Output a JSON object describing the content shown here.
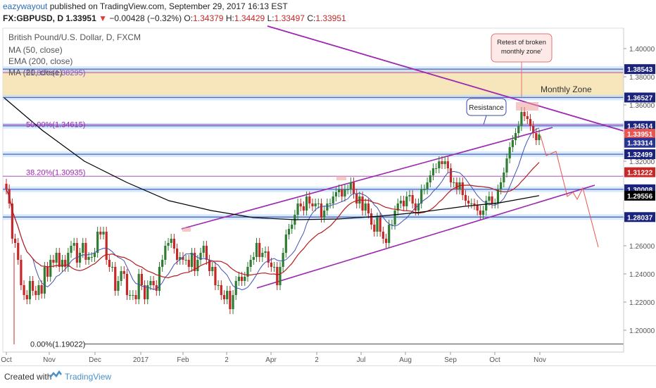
{
  "header": {
    "author": "eazywayout",
    "published_text": "published on TradingView.com, September 29, 2017 16:13 EST",
    "symbol": "FX:GBPUSD, D",
    "last": "1.33951",
    "change": "−0.00428 (−0.32%)",
    "o_label": "O:",
    "o_value": "1.34379",
    "h_label": "H:",
    "h_value": "1.34429",
    "l_label": "L:",
    "l_value": "1.33497",
    "c_label": "C:",
    "c_value": "1.33951"
  },
  "legend": {
    "title": "British Pound/U.S. Dollar, D, FXCM",
    "ma": "MA (50, close)",
    "ema": "EMA (200, close)",
    "ma20": "MA (20, close)"
  },
  "annotations": {
    "monthly_zone": "Monthly Zone",
    "resistance": "Resistance",
    "retest_line1": "Retest of broken",
    "retest_line2": "monthly zone'",
    "fib_61": "61.80%(1.38295)",
    "fib_50": "50.00%(1.34615)",
    "fib_38": "38.20%(1.30935)",
    "fib_0": "0.00%(1.19022)"
  },
  "footer": {
    "created_with": "Created with",
    "brand": "TradingView"
  },
  "colors": {
    "zone_fill": "#f6e3b4",
    "level_line": "#5c6bc0",
    "channel": "#9c27b0",
    "ema200": "#000000",
    "ma50": "#b71c1c",
    "ma20": "#3f51b5",
    "up_candle": "#2e7d32",
    "down_candle": "#c62828",
    "fib": "#9c27b0"
  },
  "chart_data": {
    "type": "candlestick",
    "symbol": "GBPUSD",
    "timeframe": "D",
    "ylim": [
      1.18,
      1.42
    ],
    "y_ticks": [
      "1.40000",
      "1.38000",
      "1.36000",
      "1.34000",
      "1.32000",
      "1.30000",
      "1.28000",
      "1.26000",
      "1.24000",
      "1.22000",
      "1.20000"
    ],
    "x_ticks": [
      "Oct",
      "Nov",
      "Dec",
      "2017",
      "Feb",
      "2",
      "Apr",
      "2",
      "Jul",
      "Aug",
      "Sep",
      "Oct",
      "Nov"
    ],
    "price_tags": [
      {
        "value": "1.38543",
        "price": 1.38543,
        "color": "#1a237e"
      },
      {
        "value": "1.36527",
        "price": 1.36527,
        "color": "#1a237e"
      },
      {
        "value": "1.34514",
        "price": 1.34514,
        "color": "#1a237e"
      },
      {
        "value": "1.33951",
        "price": 1.33951,
        "color": "#ef5350"
      },
      {
        "value": "1.33314",
        "price": 1.33314,
        "color": "#283593"
      },
      {
        "value": "1.32499",
        "price": 1.32499,
        "color": "#1a237e"
      },
      {
        "value": "1.31222",
        "price": 1.31222,
        "color": "#c62828"
      },
      {
        "value": "1.30008",
        "price": 1.30008,
        "color": "#1a237e"
      },
      {
        "value": "1.29556",
        "price": 1.29556,
        "color": "#000000"
      },
      {
        "value": "1.28037",
        "price": 1.28037,
        "color": "#1a237e"
      }
    ],
    "horizontal_levels": [
      1.38543,
      1.36527,
      1.34514,
      1.32499,
      1.30008,
      1.28037
    ],
    "monthly_zone": [
      1.36527,
      1.38543
    ],
    "fibonacci": [
      {
        "label": "61.80%(1.38295)",
        "price": 1.38295
      },
      {
        "label": "50.00%(1.34615)",
        "price": 1.34615
      },
      {
        "label": "38.20%(1.30935)",
        "price": 1.30935
      },
      {
        "label": "0.00%(1.19022)",
        "price": 1.19022
      }
    ],
    "channel_upper": [
      [
        258,
        1.272
      ],
      [
        785,
        1.344
      ]
    ],
    "channel_lower": [
      [
        365,
        1.23
      ],
      [
        845,
        1.303
      ]
    ],
    "trendline": [
      [
        380,
        1.416
      ],
      [
        886,
        1.3415
      ]
    ],
    "closes": [
      1.3,
      1.29,
      1.265,
      1.262,
      1.25,
      1.232,
      1.225,
      1.222,
      1.235,
      1.228,
      1.225,
      1.232,
      1.226,
      1.245,
      1.238,
      1.25,
      1.248,
      1.255,
      1.245,
      1.25,
      1.245,
      1.255,
      1.26,
      1.262,
      1.248,
      1.255,
      1.262,
      1.25,
      1.252,
      1.252,
      1.255,
      1.27,
      1.268,
      1.27,
      1.25,
      1.245,
      1.245,
      1.228,
      1.235,
      1.242,
      1.24,
      1.225,
      1.225,
      1.225,
      1.222,
      1.24,
      1.232,
      1.222,
      1.232,
      1.235,
      1.232,
      1.228,
      1.245,
      1.25,
      1.26,
      1.262,
      1.265,
      1.258,
      1.25,
      1.252,
      1.25,
      1.25,
      1.245,
      1.255,
      1.242,
      1.25,
      1.255,
      1.26,
      1.25,
      1.242,
      1.245,
      1.232,
      1.232,
      1.225,
      1.222,
      1.228,
      1.215,
      1.225,
      1.235,
      1.238,
      1.235,
      1.238,
      1.245,
      1.25,
      1.252,
      1.262,
      1.252,
      1.255,
      1.256,
      1.248,
      1.245,
      1.245,
      1.232,
      1.245,
      1.255,
      1.268,
      1.272,
      1.275,
      1.282,
      1.29,
      1.288,
      1.285,
      1.295,
      1.29,
      1.288,
      1.29,
      1.29,
      1.28,
      1.285,
      1.29,
      1.29,
      1.295,
      1.298,
      1.3,
      1.295,
      1.3,
      1.3,
      1.305,
      1.297,
      1.29,
      1.295,
      1.285,
      1.29,
      1.283,
      1.275,
      1.27,
      1.28,
      1.27,
      1.265,
      1.262,
      1.275,
      1.275,
      1.285,
      1.29,
      1.292,
      1.288,
      1.295,
      1.296,
      1.29,
      1.285,
      1.29,
      1.3,
      1.3,
      1.305,
      1.31,
      1.315,
      1.315,
      1.32,
      1.318,
      1.32,
      1.315,
      1.305,
      1.305,
      1.3,
      1.305,
      1.296,
      1.292,
      1.29,
      1.29,
      1.289,
      1.285,
      1.282,
      1.285,
      1.292,
      1.295,
      1.29,
      1.29,
      1.3,
      1.305,
      1.312,
      1.322,
      1.33,
      1.335,
      1.34,
      1.345,
      1.355,
      1.352,
      1.35,
      1.345,
      1.34,
      1.335,
      1.339
    ]
  }
}
